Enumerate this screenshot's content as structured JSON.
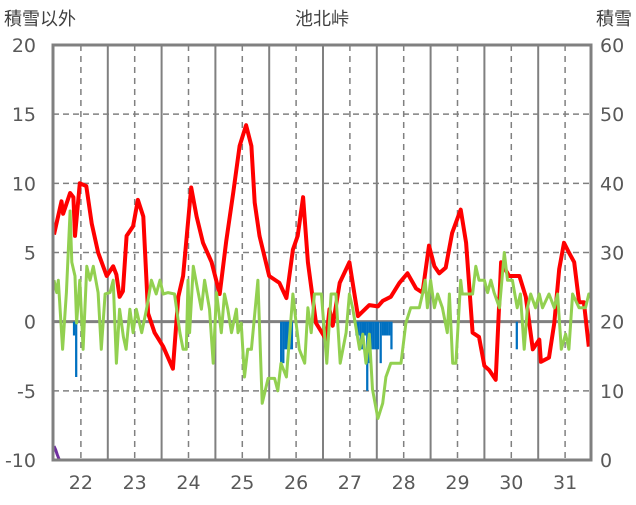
{
  "chart_data": {
    "type": "line",
    "title": "池北峠",
    "ylabel_left": "積雪以外",
    "ylabel_right": "積雪",
    "x_unit": "days since the 22nd 00:00",
    "xlim": [
      0,
      10
    ],
    "ylim_left": [
      -10,
      20
    ],
    "ylim_right": [
      0,
      60
    ],
    "yticks_left": [
      "20",
      "15",
      "10",
      "5",
      "0",
      "-5",
      "-10"
    ],
    "yticks_right": [
      "60",
      "50",
      "40",
      "30",
      "20",
      "10",
      "0"
    ],
    "xtick_labels": [
      "22",
      "23",
      "24",
      "25",
      "26",
      "27",
      "28",
      "29",
      "30",
      "31"
    ],
    "grid": true,
    "colors": {
      "red": "#ff0000",
      "green": "#92d050",
      "blue": "#0070c0",
      "purple": "#7030a0",
      "grid": "#808080"
    },
    "series": [
      {
        "name": "red-line",
        "axis": "left",
        "color": "#ff0000",
        "points": [
          [
            0,
            6.3
          ],
          [
            0.14,
            8.7
          ],
          [
            0.17,
            7.8
          ],
          [
            0.3,
            9.3
          ],
          [
            0.36,
            9.0
          ],
          [
            0.39,
            6.2
          ],
          [
            0.48,
            10.0
          ],
          [
            0.6,
            9.8
          ],
          [
            0.7,
            7.1
          ],
          [
            0.82,
            5.0
          ],
          [
            0.98,
            3.3
          ],
          [
            1.1,
            4.0
          ],
          [
            1.16,
            3.4
          ],
          [
            1.22,
            1.8
          ],
          [
            1.28,
            2.2
          ],
          [
            1.35,
            6.2
          ],
          [
            1.47,
            6.9
          ],
          [
            1.56,
            8.8
          ],
          [
            1.66,
            7.6
          ],
          [
            1.75,
            0.6
          ],
          [
            1.87,
            -0.8
          ],
          [
            2.03,
            -1.8
          ],
          [
            2.21,
            -3.4
          ],
          [
            2.31,
            1.8
          ],
          [
            2.4,
            3.3
          ],
          [
            2.55,
            9.7
          ],
          [
            2.65,
            7.6
          ],
          [
            2.77,
            5.7
          ],
          [
            2.93,
            4.3
          ],
          [
            3.08,
            2.0
          ],
          [
            3.2,
            5.8
          ],
          [
            3.33,
            9.3
          ],
          [
            3.45,
            12.7
          ],
          [
            3.57,
            14.2
          ],
          [
            3.67,
            12.7
          ],
          [
            3.73,
            8.6
          ],
          [
            3.82,
            6.2
          ],
          [
            4.0,
            3.3
          ],
          [
            4.19,
            2.8
          ],
          [
            4.32,
            1.7
          ],
          [
            4.44,
            5.2
          ],
          [
            4.53,
            6.2
          ],
          [
            4.63,
            9.0
          ],
          [
            4.72,
            4.3
          ],
          [
            4.87,
            -0.1
          ],
          [
            5.06,
            -1.3
          ],
          [
            5.12,
            0.9
          ],
          [
            5.18,
            -0.3
          ],
          [
            5.31,
            2.8
          ],
          [
            5.49,
            4.3
          ],
          [
            5.58,
            2.1
          ],
          [
            5.65,
            0.4
          ],
          [
            5.86,
            1.2
          ],
          [
            6.02,
            1.1
          ],
          [
            6.11,
            1.5
          ],
          [
            6.26,
            1.8
          ],
          [
            6.42,
            2.8
          ],
          [
            6.57,
            3.5
          ],
          [
            6.73,
            2.4
          ],
          [
            6.85,
            2.1
          ],
          [
            6.97,
            5.5
          ],
          [
            7.07,
            4.0
          ],
          [
            7.16,
            3.5
          ],
          [
            7.28,
            3.9
          ],
          [
            7.4,
            6.4
          ],
          [
            7.56,
            8.1
          ],
          [
            7.66,
            5.7
          ],
          [
            7.78,
            -0.8
          ],
          [
            7.9,
            -1.1
          ],
          [
            8.0,
            -3.2
          ],
          [
            8.09,
            -3.5
          ],
          [
            8.21,
            -4.2
          ],
          [
            8.31,
            4.3
          ],
          [
            8.46,
            3.3
          ],
          [
            8.65,
            3.3
          ],
          [
            8.77,
            1.8
          ],
          [
            8.9,
            -2.0
          ],
          [
            9.02,
            -1.3
          ],
          [
            9.05,
            -2.9
          ],
          [
            9.2,
            -2.6
          ],
          [
            9.3,
            -0.1
          ],
          [
            9.39,
            3.8
          ],
          [
            9.48,
            5.7
          ],
          [
            9.57,
            5.0
          ],
          [
            9.67,
            4.3
          ],
          [
            9.76,
            1.4
          ],
          [
            9.85,
            1.4
          ],
          [
            9.94,
            -1.8
          ]
        ]
      },
      {
        "name": "green-line",
        "axis": "left",
        "color": "#92d050",
        "points": [
          [
            0,
            3.0
          ],
          [
            0.05,
            2.1
          ],
          [
            0.08,
            3.0
          ],
          [
            0.16,
            -2.0
          ],
          [
            0.23,
            2.1
          ],
          [
            0.3,
            8.0
          ],
          [
            0.33,
            4.3
          ],
          [
            0.39,
            3.3
          ],
          [
            0.42,
            -0.1
          ],
          [
            0.48,
            3.0
          ],
          [
            0.54,
            -2.0
          ],
          [
            0.61,
            4.0
          ],
          [
            0.67,
            3.0
          ],
          [
            0.73,
            4.0
          ],
          [
            0.82,
            2.1
          ],
          [
            0.88,
            -2.0
          ],
          [
            0.95,
            2.0
          ],
          [
            1.04,
            2.1
          ],
          [
            1.1,
            3.0
          ],
          [
            1.16,
            -3.0
          ],
          [
            1.22,
            0.9
          ],
          [
            1.29,
            -1.1
          ],
          [
            1.34,
            -2.0
          ],
          [
            1.41,
            0.9
          ],
          [
            1.47,
            -0.8
          ],
          [
            1.53,
            0.9
          ],
          [
            1.63,
            -0.8
          ],
          [
            1.72,
            0.9
          ],
          [
            1.81,
            3.0
          ],
          [
            1.9,
            2.0
          ],
          [
            1.97,
            3.0
          ],
          [
            2.03,
            2.0
          ],
          [
            2.12,
            2.1
          ],
          [
            2.24,
            2.0
          ],
          [
            2.34,
            -0.8
          ],
          [
            2.4,
            -2.0
          ],
          [
            2.46,
            -2.0
          ],
          [
            2.49,
            3.0
          ],
          [
            2.52,
            -0.8
          ],
          [
            2.59,
            4.0
          ],
          [
            2.68,
            2.1
          ],
          [
            2.74,
            0.9
          ],
          [
            2.8,
            3.0
          ],
          [
            2.89,
            0.9
          ],
          [
            2.96,
            -3.0
          ],
          [
            3.02,
            2.1
          ],
          [
            3.11,
            -0.8
          ],
          [
            3.17,
            2.0
          ],
          [
            3.23,
            0.9
          ],
          [
            3.3,
            -0.8
          ],
          [
            3.39,
            0.9
          ],
          [
            3.42,
            -0.8
          ],
          [
            3.48,
            -0.1
          ],
          [
            3.54,
            -4.0
          ],
          [
            3.6,
            -2.0
          ],
          [
            3.67,
            -2.0
          ],
          [
            3.79,
            3.0
          ],
          [
            3.87,
            -5.9
          ],
          [
            3.98,
            -4.1
          ],
          [
            4.1,
            -4.1
          ],
          [
            4.16,
            -5.0
          ],
          [
            4.22,
            -3.0
          ],
          [
            4.32,
            -4.0
          ],
          [
            4.44,
            2.0
          ],
          [
            4.5,
            -0.1
          ],
          [
            4.56,
            -2.0
          ],
          [
            4.66,
            -3.0
          ],
          [
            4.72,
            1.0
          ],
          [
            4.78,
            -0.8
          ],
          [
            4.84,
            2.0
          ],
          [
            4.97,
            2.0
          ],
          [
            5.07,
            -3.0
          ],
          [
            5.15,
            2.0
          ],
          [
            5.24,
            2.0
          ],
          [
            5.32,
            -3.0
          ],
          [
            5.43,
            -0.8
          ],
          [
            5.49,
            2.0
          ],
          [
            5.55,
            1.0
          ],
          [
            5.68,
            -2.0
          ],
          [
            5.74,
            -0.9
          ],
          [
            5.8,
            -3.0
          ],
          [
            5.86,
            -0.9
          ],
          [
            5.92,
            -4.9
          ],
          [
            6.02,
            -7.0
          ],
          [
            6.11,
            -5.9
          ],
          [
            6.17,
            -4.0
          ],
          [
            6.26,
            -3.0
          ],
          [
            6.45,
            -3.0
          ],
          [
            6.54,
            -0.1
          ],
          [
            6.63,
            1.0
          ],
          [
            6.79,
            1.0
          ],
          [
            6.85,
            2.0
          ],
          [
            6.9,
            3.0
          ],
          [
            6.94,
            1.0
          ],
          [
            7.0,
            3.0
          ],
          [
            7.07,
            1.0
          ],
          [
            7.13,
            2.0
          ],
          [
            7.22,
            1.0
          ],
          [
            7.31,
            -0.8
          ],
          [
            7.35,
            2.0
          ],
          [
            7.41,
            -3.0
          ],
          [
            7.47,
            -3.0
          ],
          [
            7.56,
            3.0
          ],
          [
            7.59,
            2.0
          ],
          [
            7.78,
            2.0
          ],
          [
            7.84,
            4.0
          ],
          [
            7.9,
            3.0
          ],
          [
            8.0,
            3.0
          ],
          [
            8.06,
            2.1
          ],
          [
            8.12,
            3.0
          ],
          [
            8.18,
            2.1
          ],
          [
            8.28,
            1.0
          ],
          [
            8.37,
            5.0
          ],
          [
            8.43,
            3.0
          ],
          [
            8.52,
            3.0
          ],
          [
            8.61,
            1.0
          ],
          [
            8.67,
            2.0
          ],
          [
            8.74,
            -2.0
          ],
          [
            8.8,
            1.0
          ],
          [
            8.86,
            2.0
          ],
          [
            8.95,
            1.0
          ],
          [
            9.02,
            2.0
          ],
          [
            9.08,
            1.0
          ],
          [
            9.2,
            2.0
          ],
          [
            9.3,
            1.0
          ],
          [
            9.36,
            2.0
          ],
          [
            9.43,
            -2.0
          ],
          [
            9.51,
            -0.9
          ],
          [
            9.57,
            -2.0
          ],
          [
            9.64,
            2.0
          ],
          [
            9.76,
            1.0
          ],
          [
            9.88,
            1.0
          ],
          [
            9.94,
            2.0
          ],
          [
            10,
            2.0
          ]
        ]
      },
      {
        "name": "purple-line",
        "axis": "right",
        "color": "#7030a0",
        "points": [
          [
            0,
            2
          ],
          [
            0.03,
            1.5
          ],
          [
            0.06,
            0.8
          ],
          [
            0.1,
            0
          ],
          [
            10,
            0
          ]
        ]
      }
    ],
    "bars": {
      "name": "blue-bars",
      "axis": "left",
      "color": "#0070c0",
      "width_days": 0.042,
      "points": [
        [
          0.37,
          -1
        ],
        [
          0.41,
          -4
        ],
        [
          4.22,
          -3
        ],
        [
          4.26,
          -3
        ],
        [
          4.3,
          -2
        ],
        [
          4.34,
          -2
        ],
        [
          4.38,
          -2
        ],
        [
          4.42,
          -2
        ],
        [
          5.62,
          -1
        ],
        [
          5.66,
          -1
        ],
        [
          5.7,
          -2
        ],
        [
          5.74,
          -2
        ],
        [
          5.78,
          -1
        ],
        [
          5.82,
          -5
        ],
        [
          5.86,
          -3
        ],
        [
          5.9,
          -2
        ],
        [
          5.94,
          -2
        ],
        [
          5.98,
          -2
        ],
        [
          6.02,
          -2
        ],
        [
          6.07,
          -3
        ],
        [
          6.11,
          -1
        ],
        [
          6.15,
          -1
        ],
        [
          6.19,
          -1
        ],
        [
          6.23,
          -1
        ],
        [
          6.27,
          -2
        ],
        [
          8.6,
          -2
        ]
      ]
    }
  }
}
